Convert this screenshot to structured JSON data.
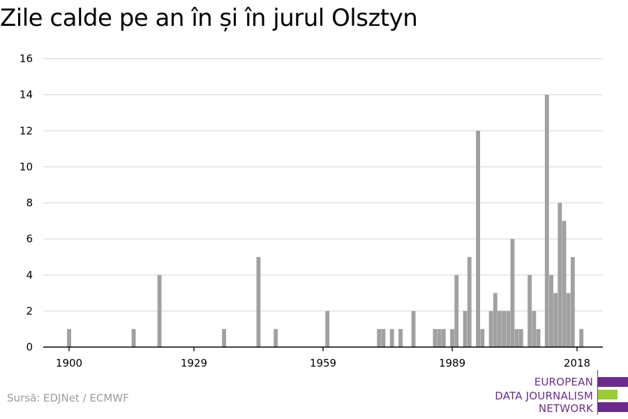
{
  "title": "Zile calde pe an în și în jurul Olsztyn",
  "source": "Sursă: EDJNet / ECMWF",
  "logo": {
    "lines": [
      "EUROPEAN",
      "DATA JOURNALISM",
      "NETWORK"
    ],
    "colors": {
      "purple": "#6b2b8e",
      "green": "#9acd32"
    }
  },
  "colors": {
    "bar": "#a0a0a0",
    "grid": "#dcdcdc",
    "axis": "#000000",
    "text": "#000000"
  },
  "chart_data": {
    "type": "bar",
    "xlim": [
      1894,
      2024
    ],
    "ylim": [
      0,
      16
    ],
    "yticks": [
      0,
      2,
      4,
      6,
      8,
      10,
      12,
      14,
      16
    ],
    "xticks": [
      1900,
      1929,
      1959,
      1989,
      2018
    ],
    "grid": true,
    "x": [
      1900,
      1915,
      1921,
      1936,
      1944,
      1948,
      1960,
      1972,
      1973,
      1975,
      1977,
      1980,
      1985,
      1986,
      1987,
      1989,
      1990,
      1992,
      1993,
      1995,
      1996,
      1998,
      1999,
      2000,
      2001,
      2002,
      2003,
      2004,
      2005,
      2007,
      2008,
      2009,
      2011,
      2012,
      2013,
      2014,
      2015,
      2016,
      2017,
      2019
    ],
    "values": [
      1,
      1,
      4,
      1,
      5,
      1,
      2,
      1,
      1,
      1,
      1,
      2,
      1,
      1,
      1,
      1,
      4,
      2,
      5,
      12,
      1,
      2,
      3,
      2,
      2,
      2,
      6,
      1,
      1,
      4,
      2,
      1,
      14,
      4,
      3,
      8,
      7,
      3,
      5,
      1
    ],
    "title": "Zile calde pe an în și în jurul Olsztyn",
    "xlabel": "",
    "ylabel": ""
  }
}
